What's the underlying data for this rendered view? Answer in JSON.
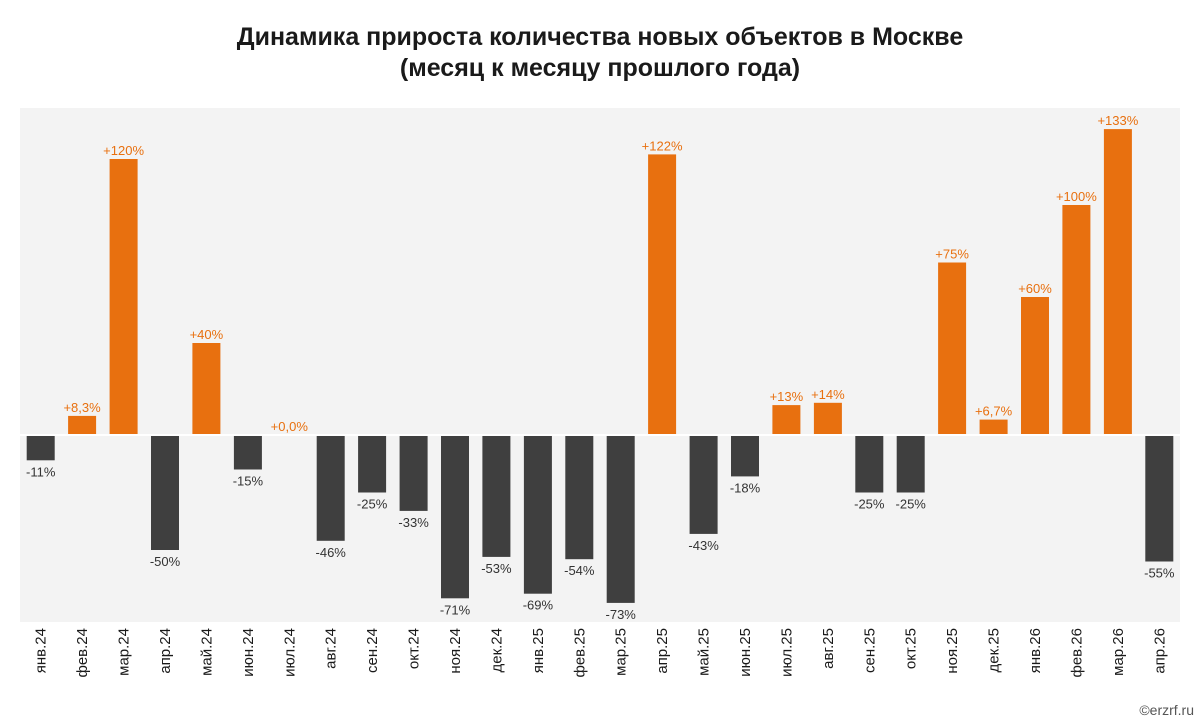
{
  "colors": {
    "positive": "#e8700f",
    "negative": "#3f3f3f",
    "positive_label": "#e8700f",
    "negative_label": "#333333",
    "plot_background": "#f3f3f3",
    "baseline": "#ffffff"
  },
  "credit": "©erzrf.ru",
  "chart_data": {
    "type": "bar",
    "title": "Динамика прироста количества новых объектов в Москве",
    "subtitle": "(месяц к месяцу прошлого года)",
    "xlabel": "",
    "ylabel": "",
    "unit": "%",
    "ylim": [
      -80,
      140
    ],
    "grid": false,
    "legend": "none",
    "categories": [
      "янв.24",
      "фев.24",
      "мар.24",
      "апр.24",
      "май.24",
      "июн.24",
      "июл.24",
      "авг.24",
      "сен.24",
      "окт.24",
      "ноя.24",
      "дек.24",
      "янв.25",
      "фев.25",
      "мар.25",
      "апр.25",
      "май.25",
      "июн.25",
      "июл.25",
      "авг.25",
      "сен.25",
      "окт.25",
      "ноя.25",
      "дек.25",
      "янв.26",
      "фев.26",
      "мар.26",
      "апр.26"
    ],
    "values": [
      -11,
      8.3,
      120,
      -50,
      40,
      -15,
      0.0,
      -46,
      -25,
      -33,
      -71,
      -53,
      -69,
      -54,
      -73,
      122,
      -43,
      -18,
      13,
      14,
      -25,
      -25,
      75,
      6.7,
      60,
      100,
      133,
      -55
    ],
    "data_labels": [
      "-11%",
      "+8,3%",
      "+120%",
      "-50%",
      "+40%",
      "-15%",
      "+0,0%",
      "-46%",
      "-25%",
      "-33%",
      "-71%",
      "-53%",
      "-69%",
      "-54%",
      "-73%",
      "+122%",
      "-43%",
      "-18%",
      "+13%",
      "+14%",
      "-25%",
      "-25%",
      "+75%",
      "+6,7%",
      "+60%",
      "+100%",
      "+133%",
      "-55%"
    ]
  }
}
